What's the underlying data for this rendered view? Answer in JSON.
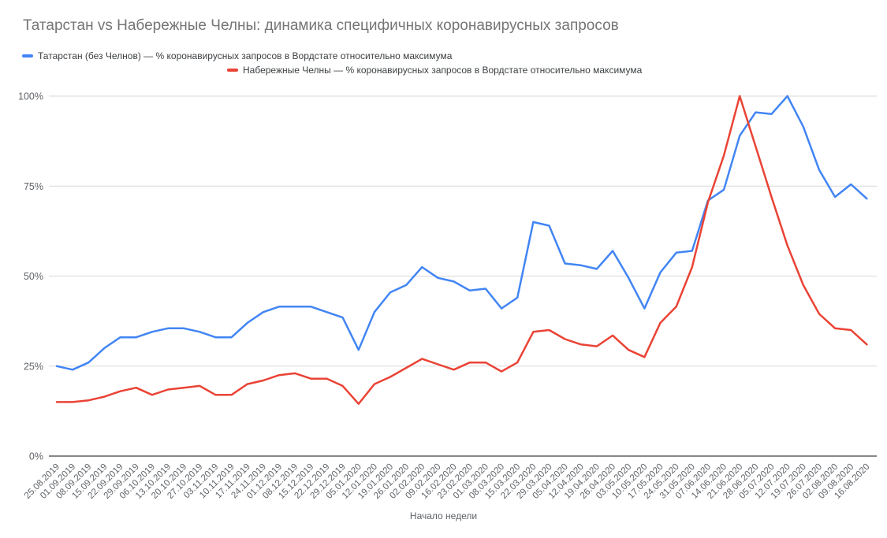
{
  "title": "Татарстан vs Набережные Челны: динамика специфичных коронавирусных запросов",
  "x_axis_title": "Начало недели",
  "chart_data": {
    "type": "line",
    "title": "Татарстан vs Набережные Челны: динамика специфичных коронавирусных запросов",
    "xlabel": "Начало недели",
    "ylabel": "",
    "ylim": [
      0,
      100
    ],
    "grid": true,
    "legend_position": "top",
    "y_tick_values": [
      0,
      25,
      50,
      75,
      100
    ],
    "y_tick_labels": [
      "0%",
      "25%",
      "50%",
      "75%",
      "100%"
    ],
    "categories": [
      "25.08.2019",
      "01.09.2019",
      "08.09.2019",
      "15.09.2019",
      "22.09.2019",
      "29.09.2019",
      "06.10.2019",
      "13.10.2019",
      "20.10.2019",
      "27.10.2019",
      "03.11.2019",
      "10.11.2019",
      "17.11.2019",
      "24.11.2019",
      "01.12.2019",
      "08.12.2019",
      "15.12.2019",
      "22.12.2019",
      "29.12.2019",
      "05.01.2020",
      "12.01.2020",
      "19.01.2020",
      "26.01.2020",
      "02.02.2020",
      "09.02.2020",
      "16.02.2020",
      "23.02.2020",
      "01.03.2020",
      "08.03.2020",
      "15.03.2020",
      "22.03.2020",
      "29.03.2020",
      "05.04.2020",
      "12.04.2020",
      "19.04.2020",
      "26.04.2020",
      "03.05.2020",
      "10.05.2020",
      "17.05.2020",
      "24.05.2020",
      "31.05.2020",
      "07.06.2020",
      "14.06.2020",
      "21.06.2020",
      "28.06.2020",
      "05.07.2020",
      "12.07.2020",
      "19.07.2020",
      "26.07.2020",
      "02.08.2020",
      "09.08.2020",
      "16.08.2020"
    ],
    "series": [
      {
        "name": "Татарстан (без Челнов) — % коронавирусных запросов в Вордстате относительно максимума",
        "color": "#4285F4",
        "values": [
          25,
          24,
          26,
          30,
          33,
          33,
          34.5,
          35.5,
          35.5,
          34.5,
          33,
          33,
          37,
          40,
          41.5,
          41.5,
          41.5,
          40,
          38.5,
          29.5,
          40,
          45.5,
          47.5,
          52.5,
          49.5,
          48.5,
          46,
          46.5,
          41,
          44,
          65,
          64,
          53.5,
          53,
          52,
          57,
          49.5,
          41,
          51,
          56.5,
          57,
          71,
          74,
          89,
          95.5,
          95,
          100,
          91.5,
          79.5,
          72,
          75.5,
          71.5
        ]
      },
      {
        "name": "Набережные Челны — % коронавирусных запросов в Вордстате относительно максимума",
        "color": "#EA4335",
        "values": [
          15,
          15,
          15.5,
          16.5,
          18,
          19,
          17,
          18.5,
          19,
          19.5,
          17,
          17,
          20,
          21,
          22.5,
          23,
          21.5,
          21.5,
          19.5,
          14.5,
          20,
          22,
          24.5,
          27,
          25.5,
          24,
          26,
          26,
          23.5,
          26,
          34.5,
          35,
          32.5,
          31,
          30.5,
          33.5,
          29.5,
          27.5,
          37,
          41.5,
          52.5,
          70.5,
          83.5,
          100,
          86,
          72,
          58.5,
          47.5,
          39.5,
          35.5,
          35,
          31
        ]
      }
    ]
  }
}
